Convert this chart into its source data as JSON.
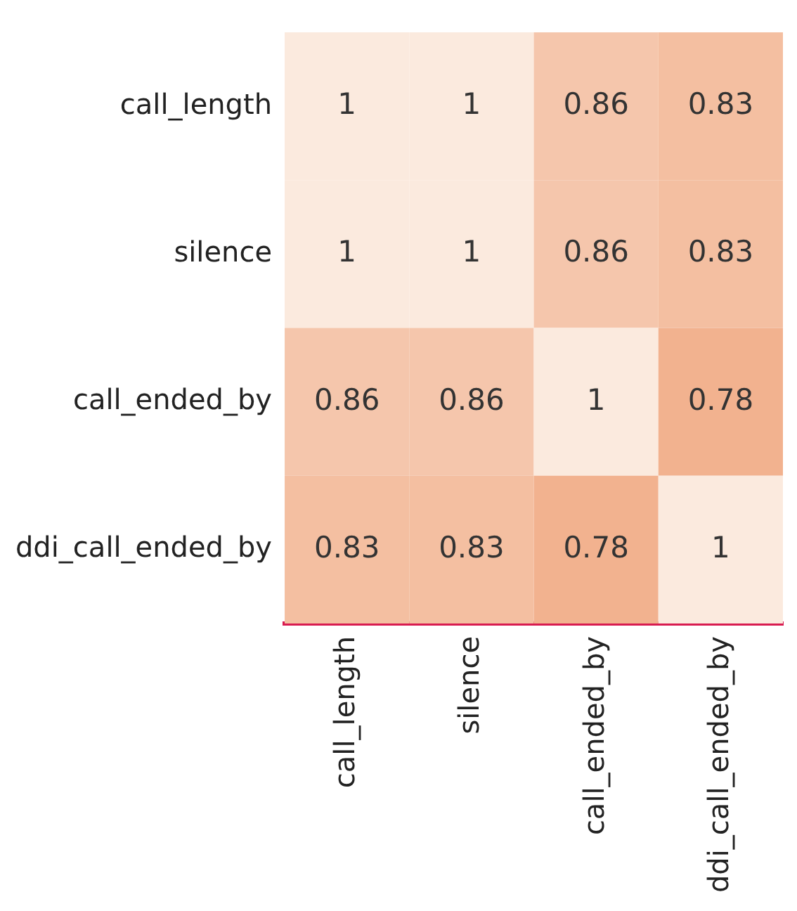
{
  "chart_data": {
    "type": "heatmap",
    "categories": [
      "call_length",
      "silence",
      "call_ended_by",
      "ddi_call_ended_by"
    ],
    "y_categories": [
      "call_length",
      "silence",
      "call_ended_by",
      "ddi_call_ended_by"
    ],
    "cells": [
      [
        1,
        1,
        0.86,
        0.83
      ],
      [
        1,
        1,
        0.86,
        0.83
      ],
      [
        0.86,
        0.86,
        1,
        0.78
      ],
      [
        0.83,
        0.83,
        0.78,
        1
      ]
    ],
    "data_labels": true
  }
}
